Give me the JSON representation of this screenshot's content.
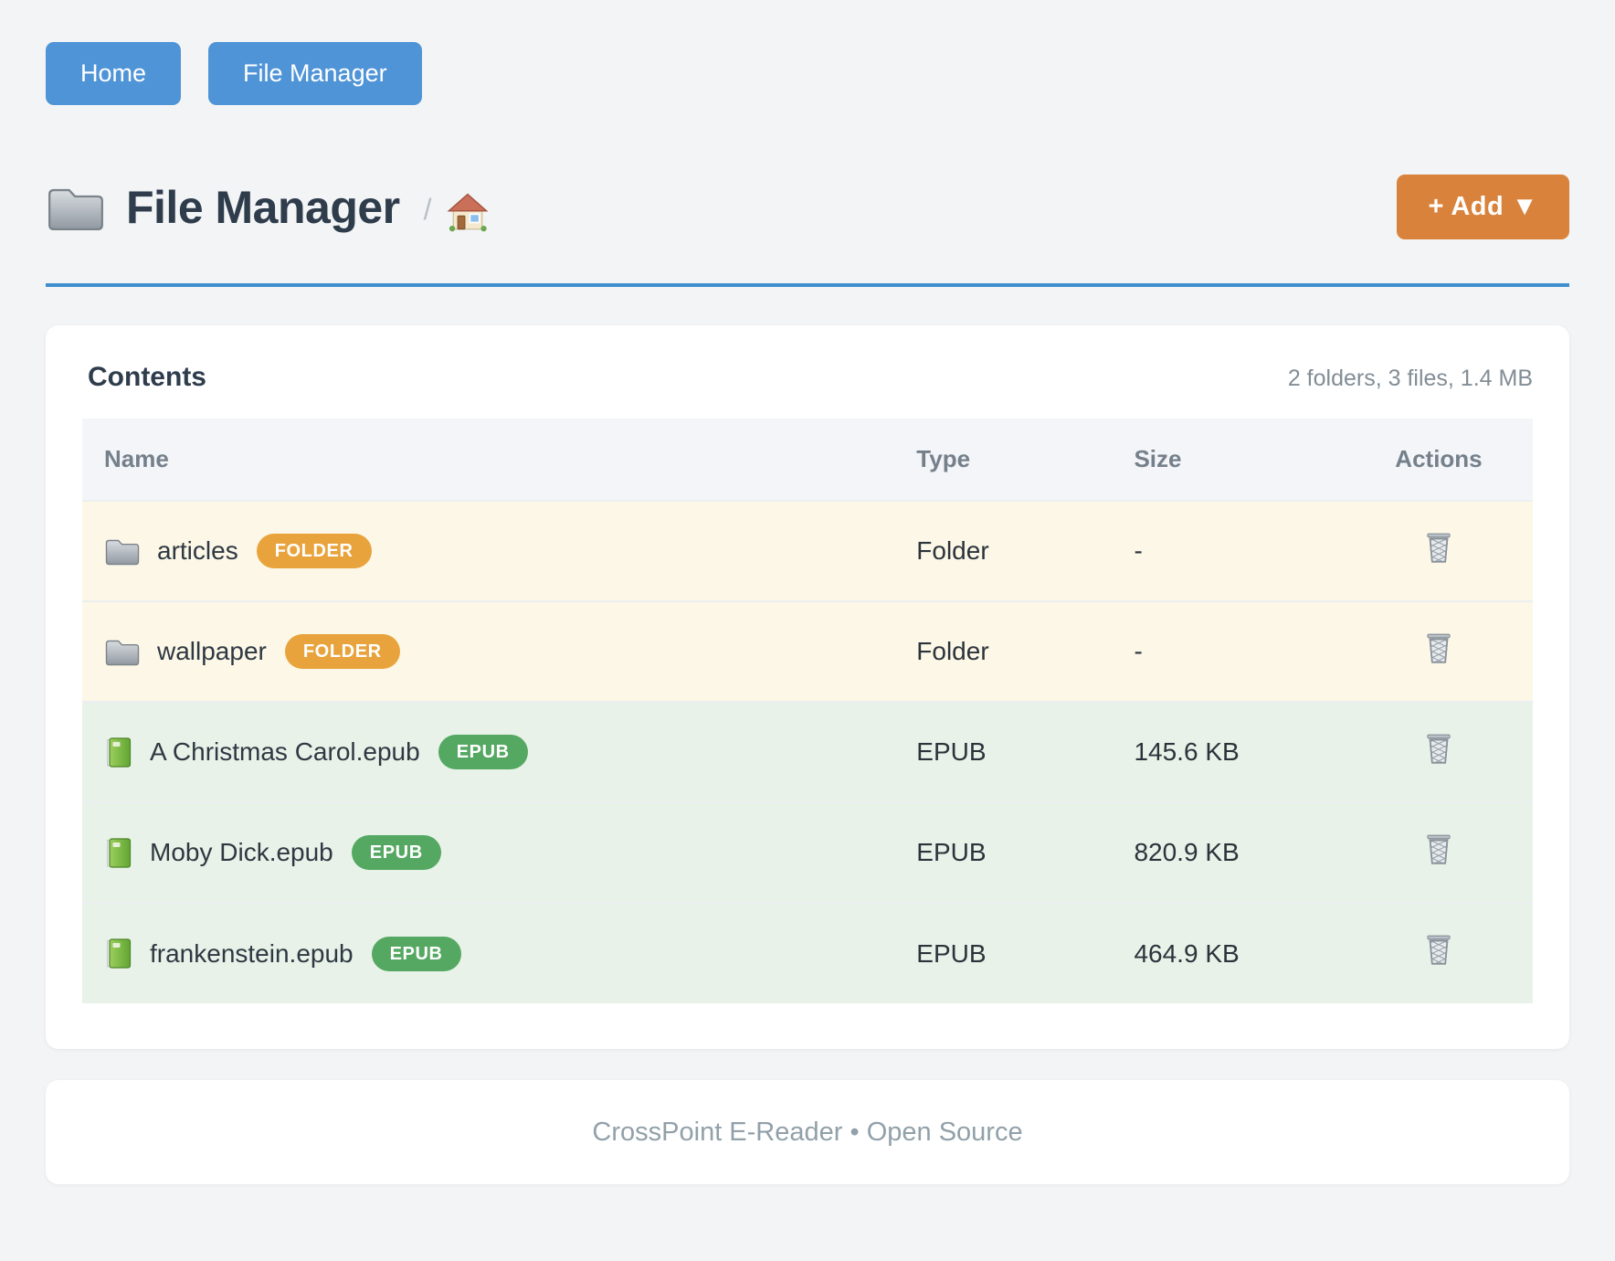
{
  "nav": {
    "home_label": "Home",
    "file_manager_label": "File Manager"
  },
  "header": {
    "title": "File Manager",
    "title_icon": "folder-icon",
    "breadcrumb_separator": "/",
    "breadcrumb_home_icon": "home-icon",
    "add_button_label": "+ Add ▼"
  },
  "contents": {
    "heading": "Contents",
    "summary": "2 folders, 3 files, 1.4 MB",
    "columns": {
      "name": "Name",
      "type": "Type",
      "size": "Size",
      "actions": "Actions"
    },
    "rows": [
      {
        "kind": "folder",
        "icon": "folder-icon",
        "name": "articles",
        "badge": "FOLDER",
        "type": "Folder",
        "size": "-",
        "action_icon": "trash-icon"
      },
      {
        "kind": "folder",
        "icon": "folder-icon",
        "name": "wallpaper",
        "badge": "FOLDER",
        "type": "Folder",
        "size": "-",
        "action_icon": "trash-icon"
      },
      {
        "kind": "epub",
        "icon": "book-icon",
        "name": "A Christmas Carol.epub",
        "badge": "EPUB",
        "type": "EPUB",
        "size": "145.6 KB",
        "action_icon": "trash-icon"
      },
      {
        "kind": "epub",
        "icon": "book-icon",
        "name": "Moby Dick.epub",
        "badge": "EPUB",
        "type": "EPUB",
        "size": "820.9 KB",
        "action_icon": "trash-icon"
      },
      {
        "kind": "epub",
        "icon": "book-icon",
        "name": "frankenstein.epub",
        "badge": "EPUB",
        "type": "EPUB",
        "size": "464.9 KB",
        "action_icon": "trash-icon"
      }
    ]
  },
  "footer": {
    "text": "CrossPoint E-Reader • Open Source"
  },
  "colors": {
    "nav_button": "#4f94d7",
    "add_button": "#d9823b",
    "title_underline": "#3f8ecf",
    "folder_row_bg": "#fcf7e6",
    "epub_row_bg": "#e8f2e8",
    "folder_badge": "#e9a33c",
    "epub_badge": "#55a862",
    "heading_text": "#2e3c4c",
    "muted_text": "#828d96"
  }
}
